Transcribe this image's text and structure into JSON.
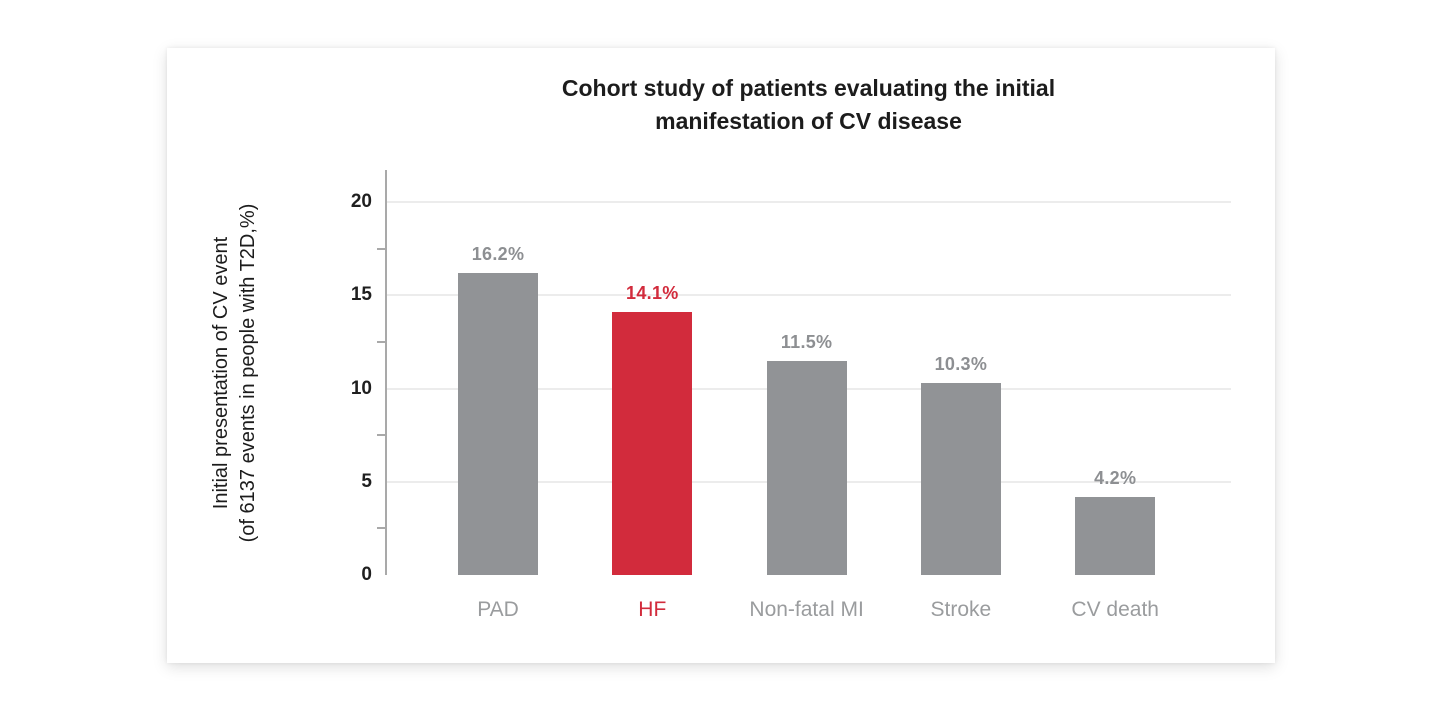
{
  "chart_data": {
    "type": "bar",
    "title": "Cohort study of patients evaluating the initial manifestation of CV disease",
    "xlabel": "",
    "ylabel": "Initial presentation of CV event (of 6137 events in people with T2D,%)",
    "ylabel_lines": [
      "Initial presentation of CV event",
      "(of 6137 events in people with T2D,%)"
    ],
    "categories": [
      "PAD",
      "HF",
      "Non-fatal MI",
      "Stroke",
      "CV death"
    ],
    "values": [
      16.2,
      14.1,
      11.5,
      10.3,
      4.2
    ],
    "value_labels": [
      "16.2%",
      "14.1%",
      "11.5%",
      "10.3%",
      "4.2%"
    ],
    "highlight_index": 1,
    "highlighted_category": "HF",
    "ylim": [
      0,
      20
    ],
    "yticks": [
      0,
      5,
      10,
      15,
      20
    ],
    "minor_yticks": [
      2.5,
      7.5,
      12.5,
      17.5
    ],
    "grid": true,
    "legend": false,
    "colors": {
      "bar_default": "#919396",
      "bar_highlight": "#d22b3c",
      "value_label_default": "#8d8f92",
      "value_label_highlight": "#d22b3c",
      "category_label_default": "#9a9c9e",
      "category_label_highlight": "#d22b3c",
      "gridline": "#ececec",
      "axis_line": "#a9a9a9",
      "tick_label": "#1f1f1f",
      "title": "#1c1c1c"
    }
  }
}
